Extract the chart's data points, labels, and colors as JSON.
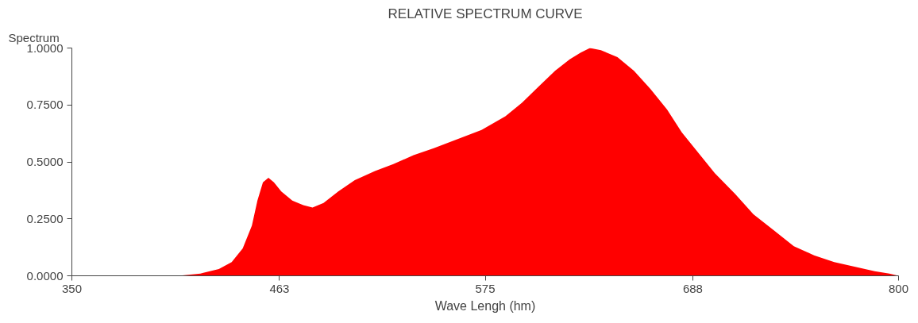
{
  "chart_data": {
    "type": "area",
    "title": "RELATIVE SPECTRUM CURVE",
    "ylabel": "Spectrum",
    "xlabel": "Wave Lengh (hm)",
    "x": [
      350,
      400,
      408,
      420,
      430,
      437,
      443,
      448,
      451,
      454,
      457,
      460,
      464,
      470,
      476,
      481,
      487,
      495,
      504,
      515,
      525,
      536,
      547,
      560,
      573,
      586,
      595,
      604,
      613,
      621,
      627,
      632,
      638,
      647,
      656,
      665,
      674,
      682,
      691,
      700,
      711,
      721,
      732,
      743,
      754,
      765,
      776,
      787,
      795,
      800
    ],
    "series": [
      {
        "color": "#ff0000",
        "values": [
          0,
          0,
          0,
          0.01,
          0.03,
          0.06,
          0.12,
          0.22,
          0.33,
          0.41,
          0.43,
          0.41,
          0.37,
          0.33,
          0.31,
          0.3,
          0.32,
          0.37,
          0.42,
          0.46,
          0.49,
          0.53,
          0.56,
          0.6,
          0.64,
          0.7,
          0.76,
          0.83,
          0.9,
          0.95,
          0.98,
          1.0,
          0.99,
          0.96,
          0.9,
          0.82,
          0.73,
          0.63,
          0.54,
          0.45,
          0.36,
          0.27,
          0.2,
          0.13,
          0.09,
          0.06,
          0.04,
          0.02,
          0.01,
          0
        ]
      }
    ],
    "xlim": [
      350,
      800
    ],
    "ylim": [
      0,
      1
    ],
    "xticks": [
      350,
      463,
      575,
      688,
      800
    ],
    "yticks": [
      {
        "value": 0,
        "label": "0.0000"
      },
      {
        "value": 0.25,
        "label": "0.2500"
      },
      {
        "value": 0.5,
        "label": "0.5000"
      },
      {
        "value": 0.75,
        "label": "0.7500"
      },
      {
        "value": 1,
        "label": "1.0000"
      }
    ],
    "grid": false
  }
}
